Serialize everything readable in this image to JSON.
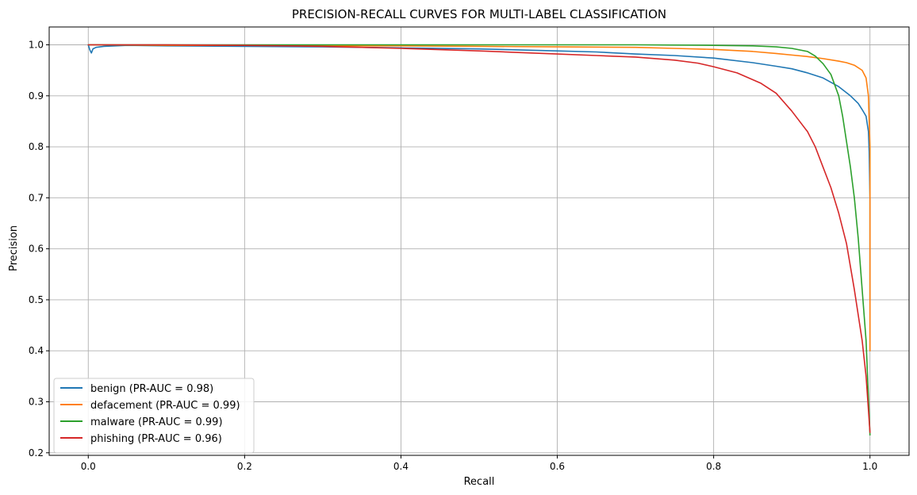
{
  "chart_data": {
    "type": "line",
    "title": "PRECISION-RECALL CURVES FOR MULTI-LABEL CLASSIFICATION",
    "xlabel": "Recall",
    "ylabel": "Precision",
    "xlim": [
      -0.05,
      1.05
    ],
    "ylim": [
      0.195,
      1.035
    ],
    "xticks": [
      0.0,
      0.2,
      0.4,
      0.6,
      0.8,
      1.0
    ],
    "xtick_labels": [
      "0.0",
      "0.2",
      "0.4",
      "0.6",
      "0.8",
      "1.0"
    ],
    "yticks": [
      0.2,
      0.3,
      0.4,
      0.5,
      0.6,
      0.7,
      0.8,
      0.9,
      1.0
    ],
    "ytick_labels": [
      "0.2",
      "0.3",
      "0.4",
      "0.5",
      "0.6",
      "0.7",
      "0.8",
      "0.9",
      "1.0"
    ],
    "grid": true,
    "legend_position": "lower-left",
    "series": [
      {
        "name": "benign (PR-AUC = 0.98)",
        "color": "#1f77b4",
        "points": [
          [
            0.0,
            1.0
          ],
          [
            0.002,
            0.99
          ],
          [
            0.004,
            0.984
          ],
          [
            0.006,
            0.992
          ],
          [
            0.01,
            0.995
          ],
          [
            0.02,
            0.997
          ],
          [
            0.05,
            0.999
          ],
          [
            0.1,
            0.998
          ],
          [
            0.2,
            0.997
          ],
          [
            0.3,
            0.996
          ],
          [
            0.4,
            0.994
          ],
          [
            0.5,
            0.992
          ],
          [
            0.6,
            0.988
          ],
          [
            0.65,
            0.986
          ],
          [
            0.7,
            0.982
          ],
          [
            0.75,
            0.979
          ],
          [
            0.8,
            0.974
          ],
          [
            0.85,
            0.965
          ],
          [
            0.88,
            0.958
          ],
          [
            0.9,
            0.953
          ],
          [
            0.92,
            0.945
          ],
          [
            0.94,
            0.935
          ],
          [
            0.96,
            0.918
          ],
          [
            0.975,
            0.9
          ],
          [
            0.985,
            0.885
          ],
          [
            0.99,
            0.873
          ],
          [
            0.995,
            0.86
          ],
          [
            0.998,
            0.83
          ],
          [
            0.999,
            0.79
          ],
          [
            1.0,
            0.7
          ],
          [
            1.0,
            0.5
          ]
        ]
      },
      {
        "name": "defacement (PR-AUC = 0.99)",
        "color": "#ff7f0e",
        "points": [
          [
            0.0,
            1.0
          ],
          [
            0.1,
            0.999
          ],
          [
            0.2,
            0.999
          ],
          [
            0.3,
            0.998
          ],
          [
            0.4,
            0.998
          ],
          [
            0.5,
            0.997
          ],
          [
            0.6,
            0.996
          ],
          [
            0.7,
            0.995
          ],
          [
            0.75,
            0.993
          ],
          [
            0.8,
            0.991
          ],
          [
            0.85,
            0.987
          ],
          [
            0.88,
            0.983
          ],
          [
            0.9,
            0.98
          ],
          [
            0.92,
            0.977
          ],
          [
            0.94,
            0.973
          ],
          [
            0.96,
            0.968
          ],
          [
            0.97,
            0.965
          ],
          [
            0.98,
            0.96
          ],
          [
            0.99,
            0.95
          ],
          [
            0.995,
            0.935
          ],
          [
            0.998,
            0.9
          ],
          [
            1.0,
            0.8
          ],
          [
            1.0,
            0.6
          ],
          [
            1.0,
            0.4
          ]
        ]
      },
      {
        "name": "malware (PR-AUC = 0.99)",
        "color": "#2ca02c",
        "points": [
          [
            0.0,
            1.0
          ],
          [
            0.2,
            1.0
          ],
          [
            0.4,
            1.0
          ],
          [
            0.6,
            1.0
          ],
          [
            0.7,
            1.0
          ],
          [
            0.8,
            0.999
          ],
          [
            0.85,
            0.998
          ],
          [
            0.88,
            0.996
          ],
          [
            0.9,
            0.993
          ],
          [
            0.92,
            0.987
          ],
          [
            0.93,
            0.978
          ],
          [
            0.94,
            0.963
          ],
          [
            0.95,
            0.942
          ],
          [
            0.96,
            0.9
          ],
          [
            0.965,
            0.86
          ],
          [
            0.97,
            0.81
          ],
          [
            0.975,
            0.76
          ],
          [
            0.98,
            0.7
          ],
          [
            0.985,
            0.62
          ],
          [
            0.99,
            0.52
          ],
          [
            0.995,
            0.42
          ],
          [
            1.0,
            0.235
          ]
        ]
      },
      {
        "name": "phishing (PR-AUC = 0.96)",
        "color": "#d62728",
        "points": [
          [
            0.0,
            1.0
          ],
          [
            0.1,
            1.0
          ],
          [
            0.2,
            0.999
          ],
          [
            0.3,
            0.997
          ],
          [
            0.4,
            0.993
          ],
          [
            0.5,
            0.988
          ],
          [
            0.55,
            0.985
          ],
          [
            0.6,
            0.982
          ],
          [
            0.65,
            0.979
          ],
          [
            0.7,
            0.976
          ],
          [
            0.75,
            0.97
          ],
          [
            0.78,
            0.964
          ],
          [
            0.8,
            0.957
          ],
          [
            0.83,
            0.945
          ],
          [
            0.86,
            0.925
          ],
          [
            0.88,
            0.905
          ],
          [
            0.9,
            0.87
          ],
          [
            0.92,
            0.83
          ],
          [
            0.93,
            0.8
          ],
          [
            0.94,
            0.76
          ],
          [
            0.95,
            0.72
          ],
          [
            0.96,
            0.67
          ],
          [
            0.97,
            0.61
          ],
          [
            0.98,
            0.52
          ],
          [
            0.99,
            0.42
          ],
          [
            0.995,
            0.35
          ],
          [
            1.0,
            0.24
          ]
        ]
      }
    ]
  }
}
